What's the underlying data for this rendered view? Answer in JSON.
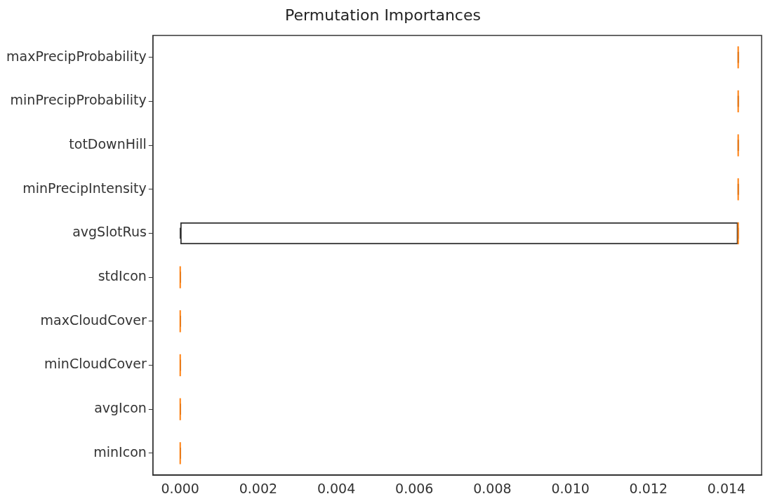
{
  "chart_data": {
    "type": "box",
    "title": "Permutation Importances",
    "orientation": "horizontal",
    "categories": [
      "maxPrecipProbability",
      "minPrecipProbability",
      "totDownHill",
      "minPrecipIntensity",
      "avgSlotRus",
      "stdIcon",
      "maxCloudCover",
      "minCloudCover",
      "avgIcon",
      "minIcon"
    ],
    "boxes": [
      {
        "low": 0.0143,
        "q1": 0.0143,
        "median": 0.0143,
        "q3": 0.0143,
        "high": 0.0143
      },
      {
        "low": 0.0143,
        "q1": 0.0143,
        "median": 0.0143,
        "q3": 0.0143,
        "high": 0.0143
      },
      {
        "low": 0.0143,
        "q1": 0.0143,
        "median": 0.0143,
        "q3": 0.0143,
        "high": 0.0143
      },
      {
        "low": 0.0143,
        "q1": 0.0143,
        "median": 0.0143,
        "q3": 0.0143,
        "high": 0.0143
      },
      {
        "low": 0,
        "q1": 0,
        "median": 0.0143,
        "q3": 0.0143,
        "high": 0.0143
      },
      {
        "low": 0,
        "q1": 0,
        "median": 0,
        "q3": 0,
        "high": 0
      },
      {
        "low": 0,
        "q1": 0,
        "median": 0,
        "q3": 0,
        "high": 0
      },
      {
        "low": 0,
        "q1": 0,
        "median": 0,
        "q3": 0,
        "high": 0
      },
      {
        "low": 0,
        "q1": 0,
        "median": 0,
        "q3": 0,
        "high": 0
      },
      {
        "low": 0,
        "q1": 0,
        "median": 0,
        "q3": 0,
        "high": 0
      }
    ],
    "xlim": [
      -0.0007,
      0.0149
    ],
    "xticks": [
      {
        "value": 0,
        "label": "0.000"
      },
      {
        "value": 0.002,
        "label": "0.002"
      },
      {
        "value": 0.004,
        "label": "0.004"
      },
      {
        "value": 0.006,
        "label": "0.006"
      },
      {
        "value": 0.008,
        "label": "0.008"
      },
      {
        "value": 0.01,
        "label": "0.010"
      },
      {
        "value": 0.012,
        "label": "0.012"
      },
      {
        "value": 0.014,
        "label": "0.014"
      }
    ],
    "grid": false,
    "legend": false
  }
}
